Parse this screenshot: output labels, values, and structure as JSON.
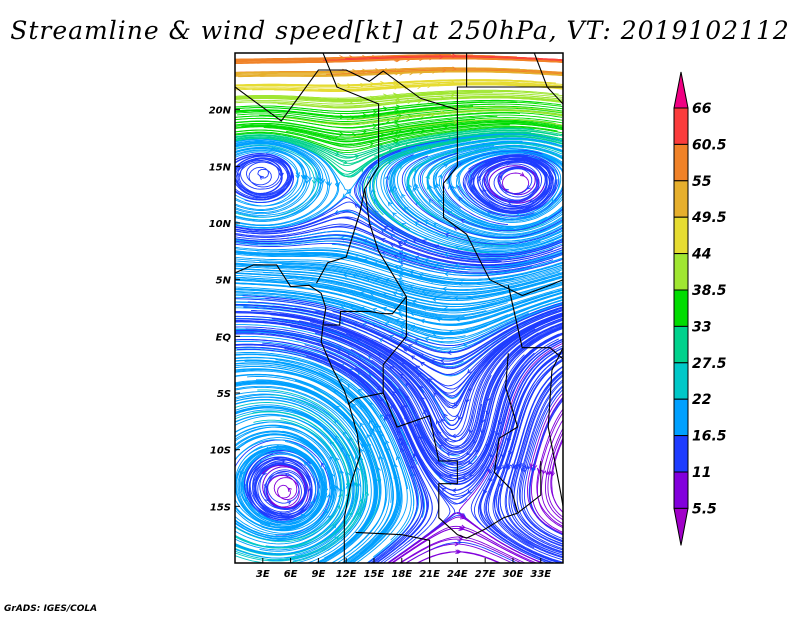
{
  "title": "Streamline & wind speed[kt] at 250hPa, VT: 2019102112",
  "credit": "GrADS: IGES/COLA",
  "map": {
    "lon_range": [
      0,
      35.4
    ],
    "lat_range": [
      -20,
      25
    ],
    "lat_ticks": [
      {
        "v": 20,
        "label": "20N"
      },
      {
        "v": 15,
        "label": "15N"
      },
      {
        "v": 10,
        "label": "10N"
      },
      {
        "v": 5,
        "label": "5N"
      },
      {
        "v": 0,
        "label": "EQ"
      },
      {
        "v": -5,
        "label": "5S"
      },
      {
        "v": -10,
        "label": "10S"
      },
      {
        "v": -15,
        "label": "15S"
      }
    ],
    "lon_ticks": [
      {
        "v": 3,
        "label": "3E"
      },
      {
        "v": 6,
        "label": "6E"
      },
      {
        "v": 9,
        "label": "9E"
      },
      {
        "v": 12,
        "label": "12E"
      },
      {
        "v": 15,
        "label": "15E"
      },
      {
        "v": 18,
        "label": "18E"
      },
      {
        "v": 21,
        "label": "21E"
      },
      {
        "v": 24,
        "label": "24E"
      },
      {
        "v": 27,
        "label": "27E"
      },
      {
        "v": 30,
        "label": "30E"
      },
      {
        "v": 33,
        "label": "33E"
      }
    ]
  },
  "colorbar": {
    "levels": [
      "5.5",
      "11",
      "16.5",
      "22",
      "27.5",
      "33",
      "38.5",
      "44",
      "49.5",
      "55",
      "60.5",
      "66"
    ],
    "colors": [
      "#a000c8",
      "#8200dc",
      "#1e3cff",
      "#00a0ff",
      "#00c8c8",
      "#00d28c",
      "#00dc00",
      "#a0e632",
      "#e6dc32",
      "#e6af2d",
      "#f08228",
      "#fa3c3c",
      "#f00082"
    ]
  }
}
